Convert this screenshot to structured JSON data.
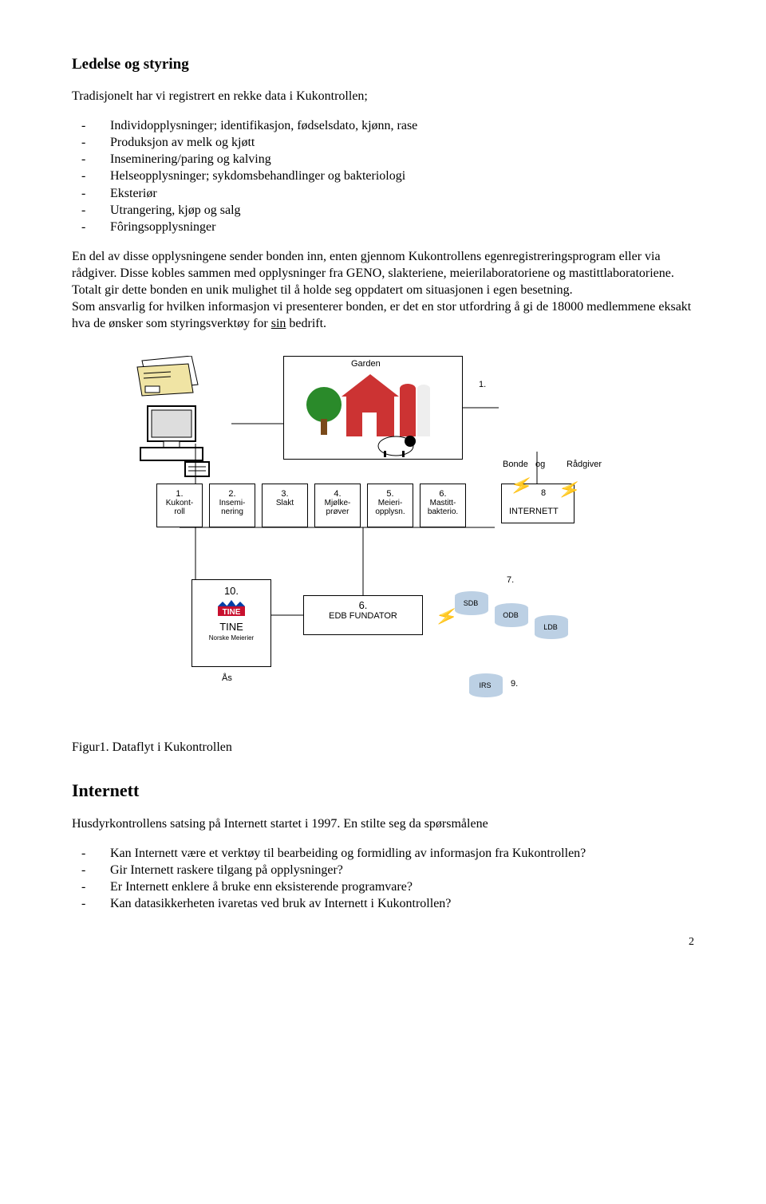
{
  "section1": {
    "heading": "Ledelse og styring",
    "intro": "Tradisjonelt har vi registrert en rekke data i Kukontrollen;",
    "bullets": [
      "Individopplysninger; identifikasjon, fødselsdato, kjønn, rase",
      "Produksjon av melk og kjøtt",
      "Inseminering/paring og kalving",
      "Helseopplysninger; sykdomsbehandlinger og bakteriologi",
      "Eksteriør",
      "Utrangering, kjøp og salg",
      "Fôringsopplysninger"
    ],
    "para1a": "En del av disse opplysningene sender bonden inn, enten gjennom Kukontrollens egenregistreringsprogram eller via rådgiver. Disse kobles sammen med opplysninger fra GENO, slakteriene, meierilaboratoriene og mastittlaboratoriene. Totalt gir dette bonden en unik mulighet til å holde seg oppdatert om situasjonen i egen besetning.",
    "para1b_a": "Som ansvarlig for hvilken informasjon vi presenterer bonden, er det en stor utfordring å gi de 18000 medlemmene eksakt hva de ønsker som styringsverktøy for ",
    "para1b_sin": "sin",
    "para1b_b": " bedrift."
  },
  "diagram": {
    "garden": "Garden",
    "big1": "1.",
    "bonde": "Bonde",
    "og": "og",
    "radgiver": "Rådgiver",
    "boxes": [
      {
        "n": "1.",
        "t": "Kukont-\nroll"
      },
      {
        "n": "2.",
        "t": "Insemi-\nnering"
      },
      {
        "n": "3.",
        "t": "Slakt"
      },
      {
        "n": "4.",
        "t": "Mjølke-\nprøver"
      },
      {
        "n": "5.",
        "t": "Meieri-\nopplysn."
      },
      {
        "n": "6.",
        "t": "Mastitt-\nbakterio."
      }
    ],
    "net8": "8",
    "internet": "INTERNETT",
    "tine_n": "10.",
    "tine": "TINE",
    "tine_sub": "Norske Meierier",
    "as": "Ås",
    "edb_n": "6.",
    "edb": "EDB FUNDATOR",
    "db": {
      "sdb": "SDB",
      "odb": "ODB",
      "ldb": "LDB",
      "irs": "IRS"
    },
    "n7": "7.",
    "n9": "9.",
    "caption": "Figur1. Dataflyt i Kukontrollen",
    "colors": {
      "db_fill": "#bcd0e4",
      "bolt": "#3aa6dd",
      "mail": "#f0e4a4",
      "farm_red": "#c33",
      "grass": "#2a8a2a"
    }
  },
  "section2": {
    "heading": "Internett",
    "intro": "Husdyrkontrollens satsing på Internett startet i 1997. En stilte seg da spørsmålene",
    "bullets": [
      "Kan Internett være et verktøy til bearbeiding og formidling av informasjon fra Kukontrollen?",
      "Gir Internett raskere tilgang på opplysninger?",
      "Er Internett enklere å bruke enn eksisterende programvare?",
      "Kan datasikkerheten ivaretas ved bruk av Internett i Kukontrollen?"
    ]
  },
  "pagenum": "2"
}
